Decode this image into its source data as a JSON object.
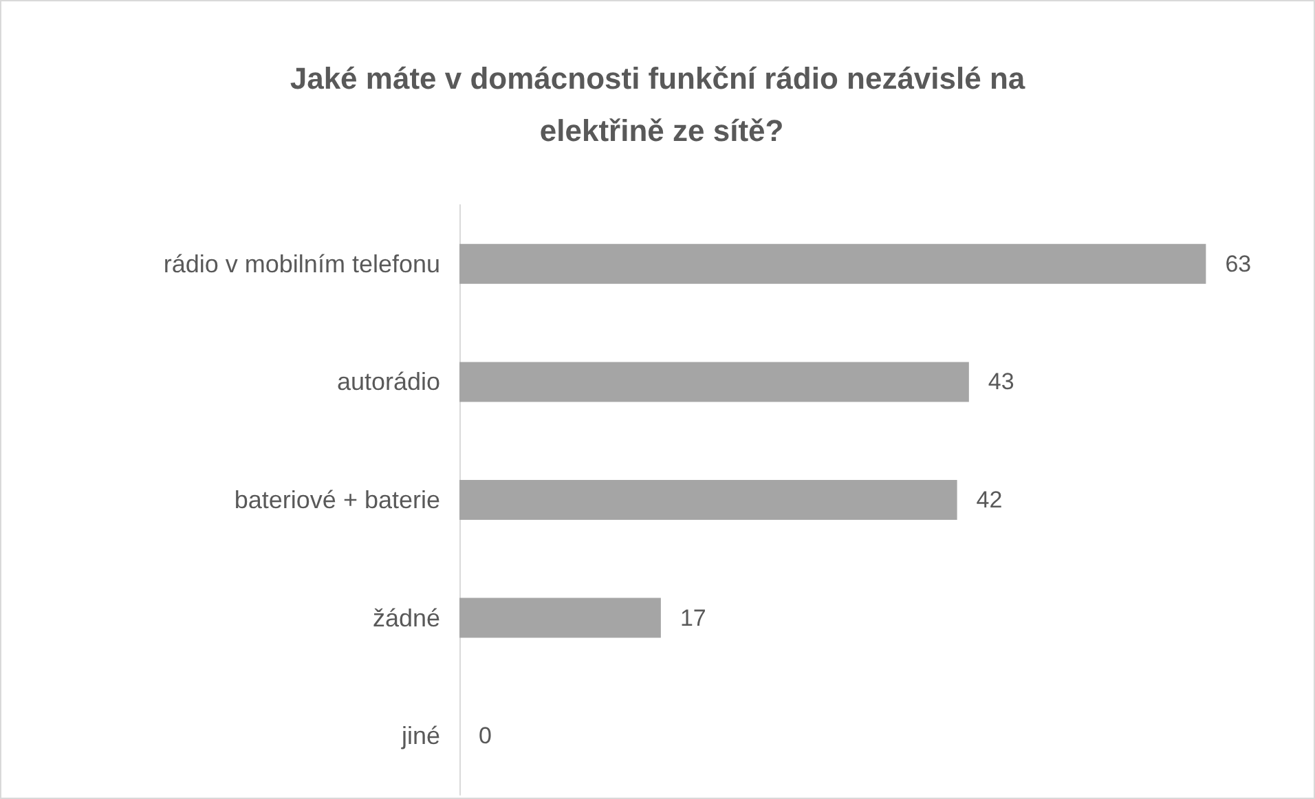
{
  "chart_data": {
    "type": "bar",
    "orientation": "horizontal",
    "title": "Jaké máte v domácnosti funkční rádio nezávislé na elektřině ze sítě?",
    "categories": [
      "rádio v mobilním telefonu",
      "autorádio",
      "bateriové + baterie",
      "žádné",
      "jiné"
    ],
    "values": [
      63,
      43,
      42,
      17,
      0
    ],
    "color": "#a5a5a5",
    "data_labels": true
  }
}
